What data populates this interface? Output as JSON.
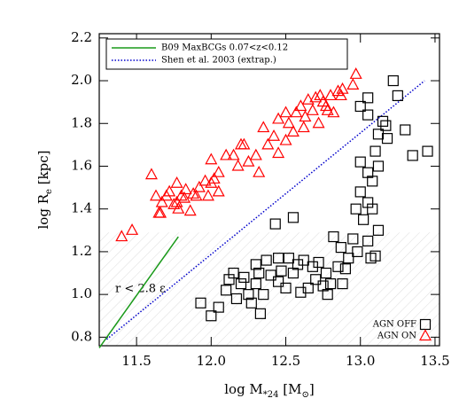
{
  "chart_data": {
    "type": "scatter",
    "xlabel": [
      {
        "text": "log M"
      },
      {
        "text": "*24",
        "sub": true
      },
      {
        "text": " [M"
      },
      {
        "text": "⊙",
        "sub": true
      },
      {
        "text": "]"
      }
    ],
    "ylabel": [
      {
        "text": "log R"
      },
      {
        "text": "e",
        "sub": true
      },
      {
        "text": " [kpc]"
      }
    ],
    "xlim": [
      11.25,
      13.53
    ],
    "ylim": [
      0.76,
      2.22
    ],
    "xticks": [
      11.5,
      {
        "value": 12,
        "label": "12.0"
      },
      12.5,
      {
        "value": 13,
        "label": "13.0"
      },
      13.5
    ],
    "yticks": [
      0.8,
      {
        "value": 1,
        "label": "1.0"
      },
      1.2,
      1.4,
      1.6,
      1.8,
      {
        "value": 2,
        "label": "2.0"
      },
      2.2
    ],
    "shade_below": 1.29,
    "annotation": "r < 2.8 ε",
    "lines": [
      {
        "name": "B09 MaxBCGs 0.07<z<0.12",
        "color": "#1a9a1a",
        "style": "solid",
        "x": [
          11.25,
          11.78
        ],
        "y": [
          0.75,
          1.27
        ]
      },
      {
        "name": "Shen et al. 2003 (extrap.)",
        "color": "#0000cc",
        "style": "dotted",
        "x": [
          11.3,
          13.43
        ],
        "y": [
          0.79,
          2.0
        ]
      }
    ],
    "series": [
      {
        "name": "AGN OFF",
        "color": "#000000",
        "marker": "square",
        "x": [
          11.93,
          12.0,
          12.05,
          12.1,
          12.12,
          12.15,
          12.17,
          12.2,
          12.22,
          12.25,
          12.27,
          12.3,
          12.3,
          12.32,
          12.33,
          12.35,
          12.37,
          12.4,
          12.43,
          12.45,
          12.45,
          12.47,
          12.5,
          12.52,
          12.55,
          12.55,
          12.58,
          12.6,
          12.62,
          12.65,
          12.68,
          12.7,
          12.72,
          12.75,
          12.77,
          12.78,
          12.8,
          12.82,
          12.85,
          12.87,
          12.88,
          12.9,
          12.92,
          12.95,
          12.97,
          12.98,
          13.0,
          13.0,
          13.02,
          13.05,
          13.05,
          13.07,
          13.08,
          13.1,
          13.12,
          13.05,
          13.0,
          13.05,
          13.1,
          13.12,
          13.12,
          13.15,
          13.17,
          13.18,
          13.22,
          13.25,
          13.3,
          13.35,
          13.45,
          13.05,
          13.08
        ],
        "y": [
          0.96,
          0.9,
          0.94,
          1.02,
          1.07,
          1.1,
          0.98,
          1.05,
          1.08,
          1.0,
          0.96,
          1.05,
          1.14,
          1.1,
          0.91,
          1.0,
          1.16,
          1.09,
          1.33,
          1.17,
          1.06,
          1.11,
          1.03,
          1.17,
          1.1,
          1.36,
          1.14,
          1.01,
          1.16,
          1.03,
          1.13,
          1.07,
          1.15,
          1.04,
          1.1,
          1.0,
          1.05,
          1.27,
          1.13,
          1.22,
          1.05,
          1.12,
          1.17,
          1.26,
          1.4,
          1.2,
          1.48,
          1.62,
          1.35,
          1.25,
          1.43,
          1.17,
          1.4,
          1.18,
          1.3,
          1.57,
          1.88,
          1.84,
          1.67,
          1.75,
          1.6,
          1.81,
          1.79,
          1.73,
          2.0,
          1.93,
          1.77,
          1.65,
          1.67,
          1.92,
          1.53
        ]
      },
      {
        "name": "AGN ON",
        "color": "#ff0000",
        "marker": "triangle",
        "x": [
          11.4,
          11.47,
          11.6,
          11.63,
          11.65,
          11.66,
          11.67,
          11.7,
          11.72,
          11.75,
          11.77,
          11.78,
          11.77,
          11.8,
          11.82,
          11.83,
          11.86,
          11.88,
          11.9,
          11.92,
          11.96,
          11.98,
          12.0,
          12.02,
          12.0,
          12.05,
          12.05,
          12.1,
          12.15,
          12.18,
          12.2,
          12.22,
          12.25,
          12.3,
          12.32,
          12.35,
          12.38,
          12.42,
          12.45,
          12.45,
          12.5,
          12.5,
          12.52,
          12.55,
          12.57,
          12.6,
          12.62,
          12.63,
          12.65,
          12.68,
          12.7,
          12.72,
          12.73,
          12.75,
          12.77,
          12.78,
          12.8,
          12.82,
          12.85,
          12.87,
          12.88,
          12.95,
          12.97
        ],
        "y": [
          1.27,
          1.3,
          1.56,
          1.46,
          1.38,
          1.38,
          1.43,
          1.46,
          1.48,
          1.42,
          1.43,
          1.4,
          1.52,
          1.46,
          1.45,
          1.49,
          1.39,
          1.47,
          1.46,
          1.5,
          1.53,
          1.46,
          1.52,
          1.54,
          1.63,
          1.57,
          1.48,
          1.65,
          1.65,
          1.6,
          1.7,
          1.7,
          1.62,
          1.65,
          1.57,
          1.78,
          1.7,
          1.74,
          1.82,
          1.66,
          1.72,
          1.85,
          1.8,
          1.76,
          1.85,
          1.88,
          1.78,
          1.83,
          1.91,
          1.86,
          1.92,
          1.8,
          1.93,
          1.9,
          1.88,
          1.86,
          1.93,
          1.85,
          1.95,
          1.93,
          1.96,
          1.98,
          2.03
        ]
      }
    ]
  }
}
